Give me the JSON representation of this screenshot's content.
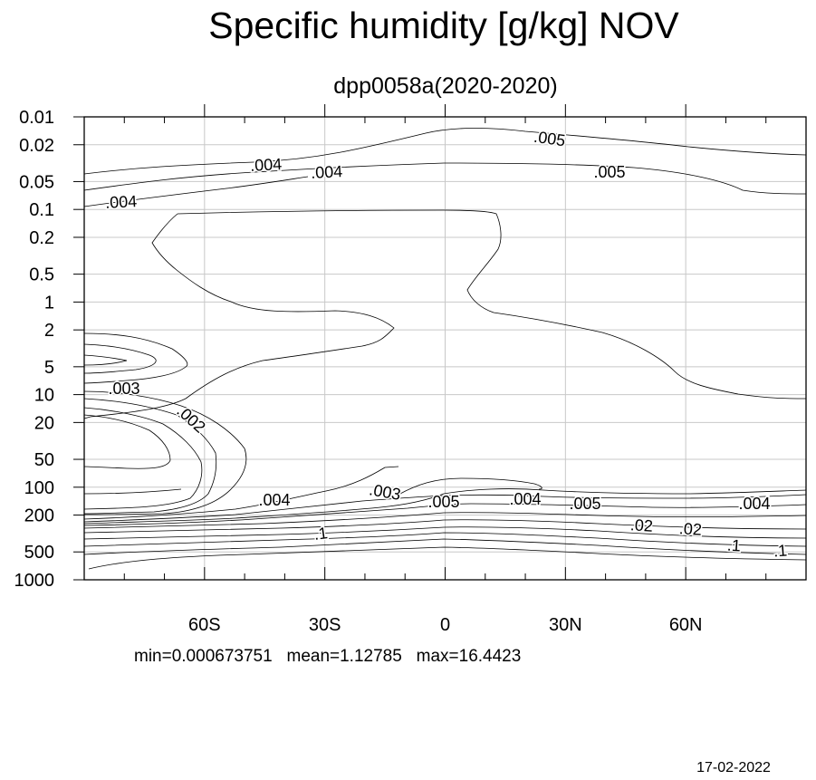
{
  "chart_data": {
    "type": "contour",
    "title": "Specific humidity [g/kg] NOV",
    "subtitle": "dpp0058a(2020-2020)",
    "xlabel": "",
    "ylabel": "",
    "x_ticks": [
      {
        "value": -60,
        "label": "60S"
      },
      {
        "value": -30,
        "label": "30S"
      },
      {
        "value": 0,
        "label": "0"
      },
      {
        "value": 30,
        "label": "30N"
      },
      {
        "value": 60,
        "label": "60N"
      }
    ],
    "y_ticks": [
      {
        "value": 0.01,
        "label": "0.01"
      },
      {
        "value": 0.02,
        "label": "0.02"
      },
      {
        "value": 0.05,
        "label": "0.05"
      },
      {
        "value": 0.1,
        "label": "0.1"
      },
      {
        "value": 0.2,
        "label": "0.2"
      },
      {
        "value": 0.5,
        "label": "0.5"
      },
      {
        "value": 1,
        "label": "1"
      },
      {
        "value": 2,
        "label": "2"
      },
      {
        "value": 5,
        "label": "5"
      },
      {
        "value": 10,
        "label": "10"
      },
      {
        "value": 20,
        "label": "20"
      },
      {
        "value": 50,
        "label": "50"
      },
      {
        "value": 100,
        "label": "100"
      },
      {
        "value": 200,
        "label": "200"
      },
      {
        "value": 500,
        "label": "500"
      },
      {
        "value": 1000,
        "label": "1000"
      }
    ],
    "xlim": [
      -90,
      90
    ],
    "ylim": [
      0.01,
      1000
    ],
    "y_scale": "log-reversed",
    "grid": true,
    "contours": [
      {
        "level": 0.005,
        "points": [
          [
            -90,
            0.05
          ],
          [
            -75,
            0.043
          ],
          [
            -60,
            0.038
          ],
          [
            -45,
            0.036
          ],
          [
            -30,
            0.032
          ],
          [
            -15,
            0.023
          ],
          [
            -5,
            0.018
          ],
          [
            5,
            0.017
          ],
          [
            20,
            0.019
          ],
          [
            40,
            0.024
          ],
          [
            60,
            0.03
          ],
          [
            75,
            0.033
          ],
          [
            90,
            0.032
          ]
        ]
      },
      {
        "level": 0.004,
        "points": [
          [
            -90,
            0.065
          ],
          [
            -75,
            0.058
          ],
          [
            -60,
            0.053
          ],
          [
            -45,
            0.05
          ],
          [
            -30,
            0.045
          ],
          [
            -15,
            0.039
          ],
          [
            0,
            0.036
          ],
          [
            20,
            0.036
          ],
          [
            40,
            0.039
          ],
          [
            55,
            0.043
          ],
          [
            65,
            0.047
          ],
          [
            75,
            0.056
          ],
          [
            80,
            0.07
          ],
          [
            85,
            0.075
          ],
          [
            90,
            0.075
          ]
        ]
      },
      {
        "level": 0.004,
        "points": [
          [
            -90,
            0.09
          ],
          [
            -75,
            0.083
          ],
          [
            -60,
            0.075
          ],
          [
            -45,
            0.066
          ],
          [
            -35,
            0.056
          ]
        ]
      },
      {
        "level": 0.003,
        "points": [
          [
            -65,
            0.1
          ],
          [
            -45,
            0.099
          ],
          [
            -30,
            0.098
          ],
          [
            -15,
            0.098
          ],
          [
            0,
            0.098
          ],
          [
            10,
            0.1
          ],
          [
            12,
            0.12
          ],
          [
            14,
            0.2
          ],
          [
            10,
            0.4
          ],
          [
            6,
            0.9
          ],
          [
            8,
            1.4
          ],
          [
            15,
            1.6
          ],
          [
            30,
            2.1
          ],
          [
            45,
            3.4
          ],
          [
            55,
            5.8
          ],
          [
            60,
            9.5
          ],
          [
            70,
            12
          ],
          [
            80,
            13.5
          ],
          [
            90,
            13.5
          ]
        ]
      },
      {
        "level": 0.003,
        "points": [
          [
            -65,
            0.1
          ],
          [
            -68,
            0.15
          ],
          [
            -73,
            0.2
          ],
          [
            -70,
            0.3
          ],
          [
            -65,
            0.45
          ],
          [
            -55,
            0.8
          ],
          [
            -45,
            1.3
          ],
          [
            -35,
            1.6
          ],
          [
            -25,
            1.6
          ],
          [
            -15,
            1.4
          ],
          [
            -13,
            2.0
          ],
          [
            -16,
            2.6
          ],
          [
            -25,
            3.5
          ],
          [
            -40,
            4.5
          ],
          [
            -55,
            7
          ],
          [
            -64,
            11
          ],
          [
            -70,
            13
          ],
          [
            -80,
            15
          ]
        ]
      }
    ]
  },
  "contour_labels": [
    ".005",
    ".004",
    ".004",
    ".005",
    ".004",
    ".003",
    ".002",
    ".004",
    ".003",
    ".005",
    ".004",
    ".005",
    ".004",
    ".1",
    ".02",
    ".02",
    ".1",
    ".1"
  ],
  "footer": {
    "stats": "min=0.000673751   mean=1.12785   max=16.4423",
    "date": "17-02-2022"
  }
}
